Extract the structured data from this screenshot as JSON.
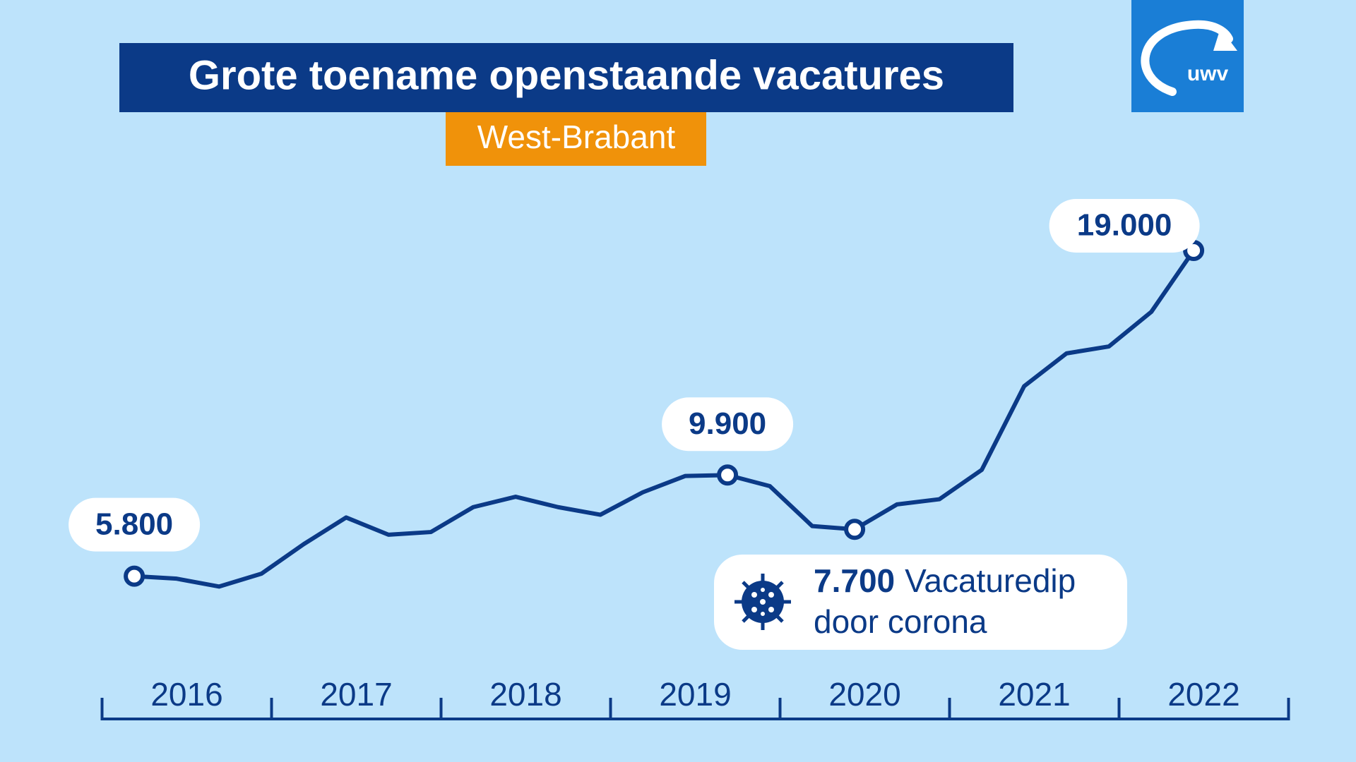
{
  "chart_data": {
    "type": "line",
    "title": "Grote toename openstaande vacatures",
    "subtitle": "West-Brabant",
    "logo": "uwv",
    "categories": [
      "2016",
      "2017",
      "2018",
      "2019",
      "2020",
      "2021",
      "2022"
    ],
    "xlim": [
      2016,
      2023
    ],
    "ylim": [
      0,
      25000
    ],
    "x": [
      2016.19,
      2016.44,
      2016.69,
      2016.94,
      2017.19,
      2017.44,
      2017.69,
      2017.94,
      2018.19,
      2018.44,
      2018.69,
      2018.94,
      2019.19,
      2019.44,
      2019.69,
      2019.94,
      2020.19,
      2020.44,
      2020.69,
      2020.94,
      2021.19,
      2021.44,
      2021.69,
      2021.94,
      2022.19,
      2022.44
    ],
    "series": [
      {
        "color": "#0b3a87",
        "values": [
          5800,
          5700,
          5380,
          5900,
          7100,
          8180,
          7480,
          7590,
          8600,
          9020,
          8600,
          8290,
          9200,
          9860,
          9900,
          9450,
          7830,
          7700,
          8710,
          8920,
          10110,
          13500,
          14830,
          15110,
          16510,
          19000
        ],
        "value_labels": [
          "5.800",
          null,
          null,
          null,
          null,
          null,
          null,
          null,
          null,
          null,
          null,
          null,
          null,
          null,
          "9.900",
          null,
          null,
          "7.700",
          null,
          null,
          null,
          null,
          null,
          null,
          null,
          "19.000"
        ]
      }
    ],
    "annotation": [
      "Vacaturedip",
      "door corona"
    ]
  }
}
